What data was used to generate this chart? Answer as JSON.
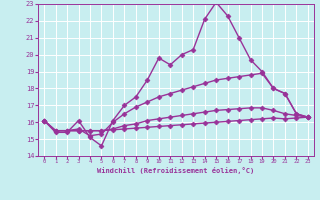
{
  "xlabel": "Windchill (Refroidissement éolien,°C)",
  "bg_color": "#c8eef0",
  "line_color": "#993399",
  "xlim": [
    -0.5,
    23.5
  ],
  "ylim": [
    14,
    23
  ],
  "xticks": [
    0,
    1,
    2,
    3,
    4,
    5,
    6,
    7,
    8,
    9,
    10,
    11,
    12,
    13,
    14,
    15,
    16,
    17,
    18,
    19,
    20,
    21,
    22,
    23
  ],
  "yticks": [
    14,
    15,
    16,
    17,
    18,
    19,
    20,
    21,
    22,
    23
  ],
  "series": [
    {
      "x": [
        0,
        1,
        2,
        3,
        4,
        5,
        6,
        7,
        8,
        9,
        10,
        11,
        12,
        13,
        14,
        15,
        16,
        17,
        18,
        19,
        20,
        21,
        22,
        23
      ],
      "y": [
        16.1,
        15.4,
        15.4,
        16.1,
        15.1,
        14.6,
        16.1,
        17.0,
        17.5,
        18.5,
        19.8,
        19.4,
        20.0,
        20.3,
        22.1,
        23.1,
        22.3,
        21.0,
        19.7,
        19.0,
        18.0,
        17.7,
        16.5,
        16.3
      ],
      "marker": "D",
      "markersize": 2.5,
      "linewidth": 1.0
    },
    {
      "x": [
        0,
        1,
        2,
        3,
        4,
        5,
        6,
        7,
        8,
        9,
        10,
        11,
        12,
        13,
        14,
        15,
        16,
        17,
        18,
        19,
        20,
        21,
        22,
        23
      ],
      "y": [
        16.1,
        15.5,
        15.5,
        15.6,
        15.2,
        15.3,
        16.0,
        16.5,
        16.9,
        17.2,
        17.5,
        17.7,
        17.9,
        18.1,
        18.3,
        18.5,
        18.6,
        18.7,
        18.8,
        18.9,
        18.0,
        17.7,
        16.5,
        16.3
      ],
      "marker": "D",
      "markersize": 2.5,
      "linewidth": 1.0
    },
    {
      "x": [
        0,
        1,
        2,
        3,
        4,
        5,
        6,
        7,
        8,
        9,
        10,
        11,
        12,
        13,
        14,
        15,
        16,
        17,
        18,
        19,
        20,
        21,
        22,
        23
      ],
      "y": [
        16.1,
        15.5,
        15.5,
        15.5,
        15.5,
        15.5,
        15.6,
        15.8,
        15.9,
        16.1,
        16.2,
        16.3,
        16.4,
        16.5,
        16.6,
        16.7,
        16.75,
        16.8,
        16.85,
        16.85,
        16.7,
        16.5,
        16.4,
        16.3
      ],
      "marker": "D",
      "markersize": 2.5,
      "linewidth": 1.0
    },
    {
      "x": [
        0,
        1,
        2,
        3,
        4,
        5,
        6,
        7,
        8,
        9,
        10,
        11,
        12,
        13,
        14,
        15,
        16,
        17,
        18,
        19,
        20,
        21,
        22,
        23
      ],
      "y": [
        16.1,
        15.5,
        15.5,
        15.5,
        15.5,
        15.5,
        15.55,
        15.6,
        15.65,
        15.7,
        15.75,
        15.8,
        15.85,
        15.9,
        15.95,
        16.0,
        16.05,
        16.1,
        16.15,
        16.2,
        16.25,
        16.2,
        16.25,
        16.3
      ],
      "marker": "D",
      "markersize": 2.5,
      "linewidth": 1.0
    }
  ]
}
